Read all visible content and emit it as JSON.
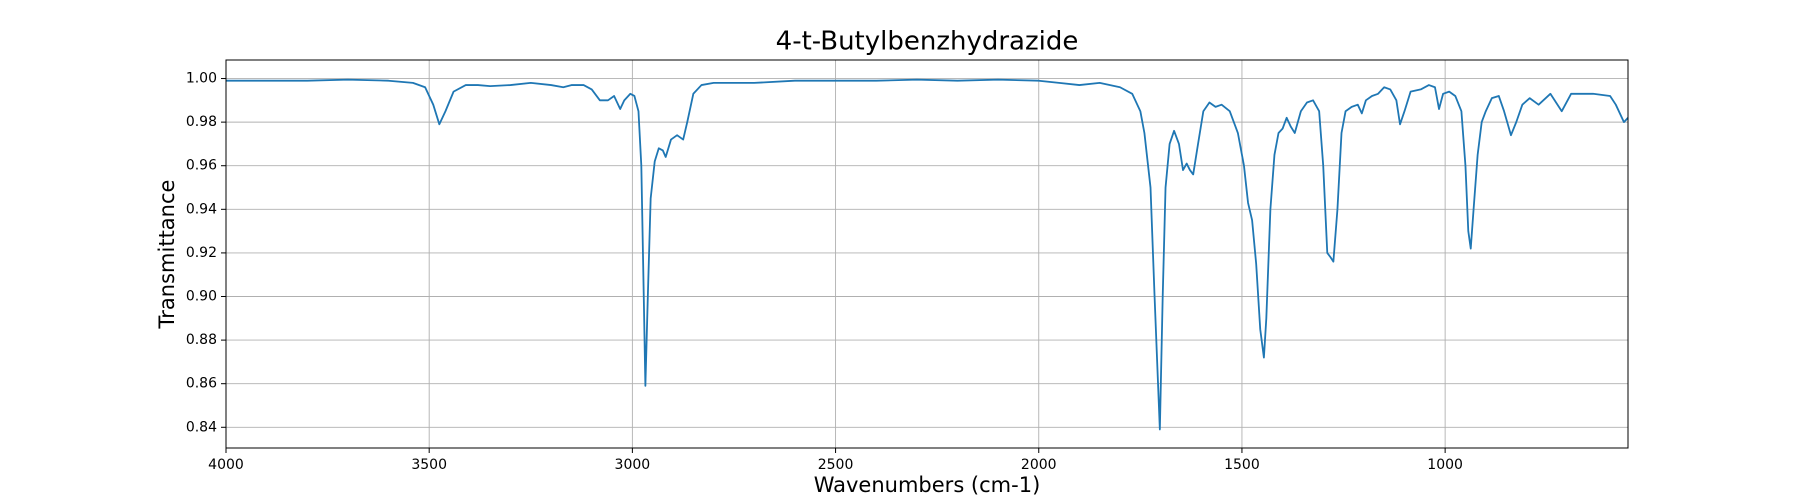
{
  "chart_data": {
    "type": "line",
    "title": "4-t-Butylbenzhydrazide",
    "x_label": "Wavenumbers (cm-1)",
    "y_label": "Transmittance",
    "x": [
      4000,
      3800,
      3700,
      3600,
      3540,
      3510,
      3490,
      3475,
      3460,
      3440,
      3410,
      3380,
      3350,
      3300,
      3250,
      3200,
      3170,
      3150,
      3120,
      3100,
      3080,
      3060,
      3045,
      3030,
      3020,
      3005,
      2995,
      2985,
      2978,
      2972,
      2968,
      2962,
      2955,
      2945,
      2935,
      2925,
      2918,
      2905,
      2890,
      2875,
      2865,
      2850,
      2830,
      2800,
      2700,
      2600,
      2500,
      2400,
      2300,
      2200,
      2100,
      2000,
      1950,
      1900,
      1850,
      1800,
      1770,
      1750,
      1740,
      1725,
      1715,
      1702,
      1695,
      1688,
      1678,
      1667,
      1655,
      1645,
      1636,
      1628,
      1620,
      1608,
      1595,
      1580,
      1565,
      1550,
      1530,
      1510,
      1495,
      1485,
      1475,
      1465,
      1455,
      1446,
      1440,
      1430,
      1420,
      1410,
      1400,
      1390,
      1380,
      1370,
      1355,
      1340,
      1325,
      1310,
      1300,
      1290,
      1282,
      1275,
      1265,
      1255,
      1245,
      1230,
      1215,
      1205,
      1195,
      1180,
      1165,
      1150,
      1135,
      1120,
      1111,
      1100,
      1085,
      1060,
      1040,
      1025,
      1015,
      1005,
      990,
      975,
      960,
      950,
      943,
      937,
      930,
      920,
      910,
      900,
      885,
      868,
      855,
      838,
      825,
      810,
      792,
      770,
      741,
      713,
      690,
      670,
      636,
      594,
      580,
      560,
      550
    ],
    "series": [
      {
        "name": "4-t-Butylbenzhydrazide",
        "color": "#1f77b4",
        "values": [
          0.999,
          0.999,
          0.9995,
          0.999,
          0.998,
          0.996,
          0.988,
          0.979,
          0.985,
          0.994,
          0.997,
          0.997,
          0.9965,
          0.997,
          0.998,
          0.997,
          0.996,
          0.997,
          0.997,
          0.995,
          0.99,
          0.99,
          0.992,
          0.986,
          0.99,
          0.993,
          0.992,
          0.985,
          0.96,
          0.9,
          0.859,
          0.9,
          0.945,
          0.962,
          0.968,
          0.967,
          0.964,
          0.972,
          0.974,
          0.972,
          0.98,
          0.993,
          0.997,
          0.998,
          0.998,
          0.999,
          0.999,
          0.999,
          0.9995,
          0.999,
          0.9995,
          0.999,
          0.998,
          0.997,
          0.998,
          0.996,
          0.993,
          0.985,
          0.975,
          0.95,
          0.9,
          0.839,
          0.9,
          0.95,
          0.97,
          0.976,
          0.97,
          0.958,
          0.961,
          0.958,
          0.956,
          0.97,
          0.985,
          0.989,
          0.987,
          0.988,
          0.985,
          0.975,
          0.96,
          0.943,
          0.935,
          0.915,
          0.885,
          0.872,
          0.89,
          0.94,
          0.965,
          0.975,
          0.977,
          0.982,
          0.978,
          0.975,
          0.985,
          0.989,
          0.99,
          0.985,
          0.96,
          0.92,
          0.918,
          0.916,
          0.94,
          0.975,
          0.985,
          0.987,
          0.988,
          0.984,
          0.99,
          0.992,
          0.993,
          0.996,
          0.995,
          0.99,
          0.979,
          0.985,
          0.994,
          0.995,
          0.997,
          0.996,
          0.986,
          0.993,
          0.994,
          0.992,
          0.985,
          0.96,
          0.93,
          0.922,
          0.94,
          0.965,
          0.98,
          0.985,
          0.991,
          0.992,
          0.985,
          0.974,
          0.98,
          0.988,
          0.991,
          0.988,
          0.993,
          0.985,
          0.993,
          0.993,
          0.993,
          0.992,
          0.988,
          0.98,
          0.982
        ]
      }
    ],
    "xlim": [
      4000,
      550
    ],
    "ylim": [
      0.8305,
      1.0085
    ],
    "xticks": [
      4000,
      3500,
      3000,
      2500,
      2000,
      1500,
      1000
    ],
    "yticks": [
      0.84,
      0.86,
      0.88,
      {
        "value": 0.9,
        "label": "0.90"
      },
      0.92,
      0.94,
      0.96,
      0.98,
      {
        "value": 1,
        "label": "1.00"
      }
    ],
    "grid": true
  }
}
